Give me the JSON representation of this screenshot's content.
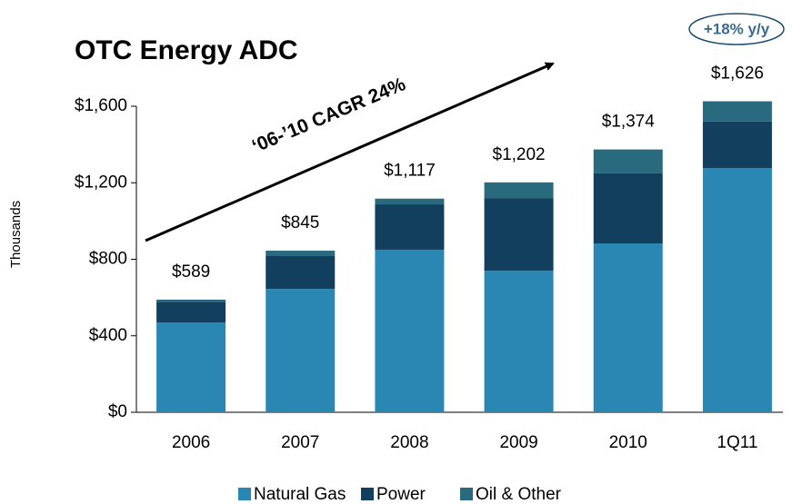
{
  "chart_data": {
    "type": "stacked_bar",
    "title": "OTC Energy ADC",
    "y_axis_label": "Thousands",
    "categories": [
      "2006",
      "2007",
      "2008",
      "2009",
      "2010",
      "1Q11"
    ],
    "series": [
      {
        "name": "Natural Gas",
        "color": "#2a86b3",
        "values": [
          470,
          645,
          850,
          740,
          883,
          1277
        ]
      },
      {
        "name": "Power",
        "color": "#123f5e",
        "values": [
          108,
          175,
          237,
          380,
          366,
          243
        ]
      },
      {
        "name": "Oil & Other",
        "color": "#2a6a7e",
        "values": [
          11,
          25,
          30,
          82,
          125,
          106
        ]
      }
    ],
    "totals": [
      589,
      845,
      1117,
      1202,
      1374,
      1626
    ],
    "total_labels": [
      "$589",
      "$845",
      "$1,117",
      "$1,202",
      "$1,374",
      "$1,626"
    ],
    "ylim": [
      0,
      1600
    ],
    "yticks": [
      {
        "value": 0,
        "label": "$0"
      },
      {
        "value": 400,
        "label": "$400"
      },
      {
        "value": 800,
        "label": "$800"
      },
      {
        "value": 1200,
        "label": "$1,200"
      },
      {
        "value": 1600,
        "label": "$1,600"
      }
    ],
    "grid": false,
    "legend": "bottom",
    "annotations": [
      "‘06-’10 CAGR 24%",
      "+18% y/y"
    ]
  }
}
